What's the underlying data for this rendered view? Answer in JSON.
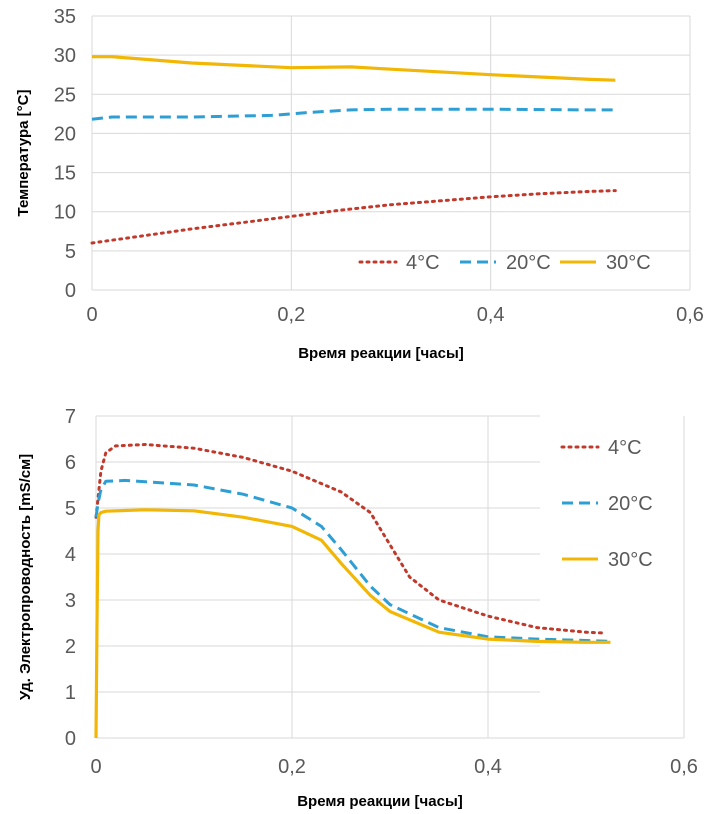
{
  "chart_data": [
    {
      "type": "line",
      "xlabel": "Время реакции  [часы]",
      "ylabel": "Температура  [°C]",
      "xlim": [
        0,
        0.6
      ],
      "ylim": [
        0,
        35
      ],
      "x_ticks": [
        "0",
        "0,2",
        "0,4",
        "0,6"
      ],
      "y_ticks": [
        "0",
        "5",
        "10",
        "15",
        "20",
        "25",
        "30",
        "35"
      ],
      "grid": true,
      "legend_position": "bottom-right",
      "series": [
        {
          "name": "4°C",
          "color": "#c0392b",
          "style": "dotted",
          "x": [
            0,
            0.05,
            0.1,
            0.15,
            0.2,
            0.25,
            0.3,
            0.35,
            0.4,
            0.45,
            0.5,
            0.525
          ],
          "y": [
            6,
            6.9,
            7.8,
            8.6,
            9.4,
            10.2,
            10.9,
            11.4,
            11.9,
            12.3,
            12.6,
            12.7
          ]
        },
        {
          "name": "20°C",
          "color": "#2e9fd4",
          "style": "dashed",
          "x": [
            0,
            0.02,
            0.1,
            0.18,
            0.22,
            0.26,
            0.3,
            0.4,
            0.5,
            0.525
          ],
          "y": [
            21.8,
            22.1,
            22.1,
            22.3,
            22.7,
            23,
            23.1,
            23.1,
            23,
            23
          ]
        },
        {
          "name": "30°C",
          "color": "#f2b705",
          "style": "solid",
          "x": [
            0,
            0.02,
            0.1,
            0.2,
            0.26,
            0.3,
            0.4,
            0.5,
            0.525
          ],
          "y": [
            29.8,
            29.8,
            29,
            28.4,
            28.5,
            28.2,
            27.5,
            26.9,
            26.8
          ]
        }
      ]
    },
    {
      "type": "line",
      "xlabel": "Время реакции  [часы]",
      "ylabel": "Уд.  Электропроводность  [mS/см]",
      "xlim": [
        0,
        0.6
      ],
      "ylim": [
        0,
        7
      ],
      "x_ticks": [
        "0",
        "0,2",
        "0,4",
        "0,6"
      ],
      "y_ticks": [
        "0",
        "1",
        "2",
        "3",
        "4",
        "5",
        "6",
        "7"
      ],
      "grid": true,
      "legend_position": "top-right",
      "series": [
        {
          "name": "4°C",
          "color": "#c0392b",
          "style": "dotted",
          "x": [
            0,
            0.002,
            0.005,
            0.01,
            0.02,
            0.05,
            0.1,
            0.15,
            0.2,
            0.25,
            0.28,
            0.3,
            0.32,
            0.35,
            0.4,
            0.45,
            0.5,
            0.52
          ],
          "y": [
            4.8,
            5.2,
            5.8,
            6.2,
            6.35,
            6.38,
            6.3,
            6.1,
            5.8,
            5.35,
            4.9,
            4.2,
            3.5,
            3.0,
            2.65,
            2.4,
            2.3,
            2.28
          ]
        },
        {
          "name": "20°C",
          "color": "#2e9fd4",
          "style": "dashed",
          "x": [
            0,
            0.002,
            0.005,
            0.01,
            0.03,
            0.1,
            0.15,
            0.2,
            0.23,
            0.25,
            0.28,
            0.3,
            0.35,
            0.4,
            0.45,
            0.5,
            0.525
          ],
          "y": [
            4.8,
            5.1,
            5.4,
            5.58,
            5.6,
            5.5,
            5.3,
            5.0,
            4.6,
            4.1,
            3.3,
            2.9,
            2.4,
            2.2,
            2.15,
            2.12,
            2.1
          ]
        },
        {
          "name": "30°C",
          "color": "#f2b705",
          "style": "solid",
          "x": [
            0,
            0.001,
            0.002,
            0.003,
            0.005,
            0.01,
            0.05,
            0.1,
            0.15,
            0.2,
            0.23,
            0.25,
            0.28,
            0.3,
            0.35,
            0.4,
            0.45,
            0.5,
            0.525
          ],
          "y": [
            0,
            2.5,
            4.5,
            4.85,
            4.9,
            4.93,
            4.96,
            4.94,
            4.8,
            4.6,
            4.3,
            3.8,
            3.1,
            2.75,
            2.3,
            2.15,
            2.1,
            2.08,
            2.08
          ]
        }
      ]
    }
  ]
}
